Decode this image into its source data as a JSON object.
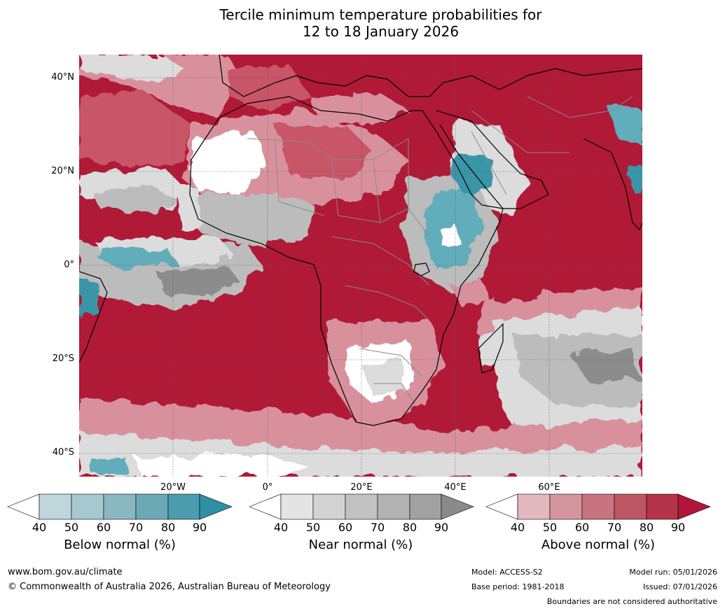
{
  "title_line1": "Tercile minimum temperature probabilities for",
  "title_line2": "12 to 18 January 2026",
  "map": {
    "lat_labels": [
      "40°N",
      "20°N",
      "0°",
      "20°S",
      "40°S"
    ],
    "lon_labels": [
      "20°W",
      "0°",
      "20°E",
      "40°E",
      "60°E"
    ],
    "colors": {
      "ocean_above": "#b01a37",
      "above_mid": "#c85467",
      "above_light": "#d8919c",
      "near_light": "#dcdcdc",
      "near_mid": "#bcbcbc",
      "near_dark": "#8c8c8c",
      "below_mid": "#62adbb",
      "below_dark": "#3b95a8",
      "border_country": "#8a8a8a",
      "coast": "#000000"
    }
  },
  "colorbars": [
    {
      "title": "Below normal (%)",
      "ticks": [
        "40",
        "50",
        "60",
        "70",
        "80",
        "90"
      ],
      "colors": [
        "#ffffff",
        "#bed6dc",
        "#a6c8cf",
        "#89b8c3",
        "#6ba9b6",
        "#4a9cae",
        "#2f8fa5"
      ]
    },
    {
      "title": "Near normal (%)",
      "ticks": [
        "40",
        "50",
        "60",
        "70",
        "80",
        "90"
      ],
      "colors": [
        "#ffffff",
        "#e4e4e4",
        "#d3d3d3",
        "#c2c2c2",
        "#b2b2b2",
        "#a1a1a1",
        "#8a8a8a"
      ]
    },
    {
      "title": "Above normal (%)",
      "ticks": [
        "40",
        "50",
        "60",
        "70",
        "80",
        "90"
      ],
      "colors": [
        "#ffffff",
        "#e3b8bf",
        "#d5959f",
        "#c9737f",
        "#be5564",
        "#b53449",
        "#b0163a"
      ]
    }
  ],
  "footer": {
    "website": "www.bom.gov.au/climate",
    "copyright": "© Commonwealth of Australia 2026, Australian Bureau of Meteorology",
    "model": "Model: ACCESS-S2",
    "base_period": "Base period: 1981-2018",
    "model_run": "Model run: 05/01/2026",
    "issued": "Issued: 07/01/2026",
    "disclaimer": "Boundaries are not considered authoritative"
  }
}
